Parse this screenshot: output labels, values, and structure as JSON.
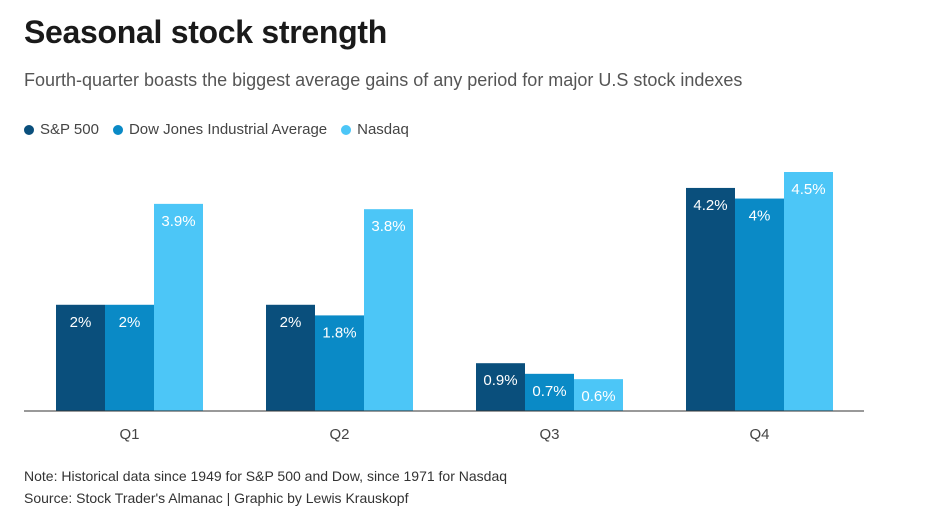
{
  "chart_data": {
    "type": "bar",
    "title": "Seasonal stock strength",
    "subtitle": "Fourth-quarter boasts the biggest average gains of any period for major U.S stock indexes",
    "categories": [
      "Q1",
      "Q2",
      "Q3",
      "Q4"
    ],
    "series": [
      {
        "name": "S&P 500",
        "color": "#0a4f7c",
        "values": [
          2,
          2,
          0.9,
          4.2
        ],
        "labels": [
          "2%",
          "2%",
          "0.9%",
          "4.2%"
        ]
      },
      {
        "name": "Dow Jones Industrial Average",
        "color": "#0a8ac6",
        "values": [
          2,
          1.8,
          0.7,
          4
        ],
        "labels": [
          "2%",
          "1.8%",
          "0.7%",
          "4%"
        ]
      },
      {
        "name": "Nasdaq",
        "color": "#4cc6f7",
        "values": [
          3.9,
          3.8,
          0.6,
          4.5
        ],
        "labels": [
          "3.9%",
          "3.8%",
          "0.6%",
          "4.5%"
        ]
      }
    ],
    "ylim": [
      0,
      4.5
    ],
    "grid": false,
    "legend_position": "top-left",
    "xlabel": "",
    "ylabel": ""
  },
  "footer": {
    "note": "Note: Historical data since 1949 for S&P 500 and Dow, since 1971 for Nasdaq",
    "source": "Source: Stock Trader's Almanac | Graphic by Lewis Krauskopf"
  }
}
